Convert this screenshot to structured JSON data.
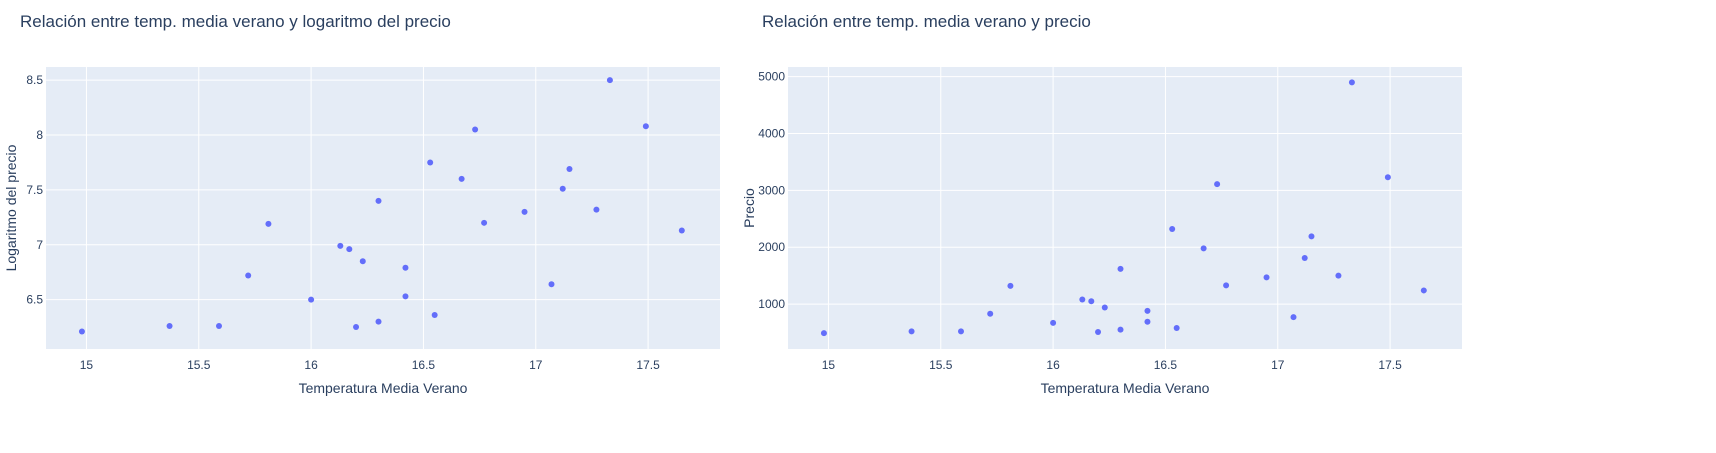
{
  "chart_data": [
    {
      "type": "scatter",
      "title": "Relación entre temp. media verano y logaritmo del precio",
      "xlabel": "Temperatura Media Verano",
      "ylabel": "Logaritmo del precio",
      "xlim": [
        14.82,
        17.82
      ],
      "ylim": [
        6.05,
        8.62
      ],
      "xticks": [
        15,
        15.5,
        16,
        16.5,
        17,
        17.5
      ],
      "xtick_labels": [
        "15",
        "15.5",
        "16",
        "16.5",
        "17",
        "17.5"
      ],
      "yticks": [
        6.5,
        7,
        7.5,
        8,
        8.5
      ],
      "ytick_labels": [
        "6.5",
        "7",
        "7.5",
        "8",
        "8.5"
      ],
      "grid": true,
      "color": "#636efa",
      "points": [
        {
          "x": 14.98,
          "y": 6.21
        },
        {
          "x": 15.37,
          "y": 6.26
        },
        {
          "x": 15.59,
          "y": 6.26
        },
        {
          "x": 15.72,
          "y": 6.72
        },
        {
          "x": 15.81,
          "y": 7.19
        },
        {
          "x": 16.0,
          "y": 6.5
        },
        {
          "x": 16.13,
          "y": 6.99
        },
        {
          "x": 16.17,
          "y": 6.96
        },
        {
          "x": 16.2,
          "y": 6.25
        },
        {
          "x": 16.23,
          "y": 6.85
        },
        {
          "x": 16.3,
          "y": 7.4
        },
        {
          "x": 16.3,
          "y": 6.3
        },
        {
          "x": 16.42,
          "y": 6.79
        },
        {
          "x": 16.42,
          "y": 6.53
        },
        {
          "x": 16.53,
          "y": 7.75
        },
        {
          "x": 16.55,
          "y": 6.36
        },
        {
          "x": 16.67,
          "y": 7.6
        },
        {
          "x": 16.73,
          "y": 8.05
        },
        {
          "x": 16.77,
          "y": 7.2
        },
        {
          "x": 16.95,
          "y": 7.3
        },
        {
          "x": 17.07,
          "y": 6.64
        },
        {
          "x": 17.12,
          "y": 7.51
        },
        {
          "x": 17.15,
          "y": 7.69
        },
        {
          "x": 17.27,
          "y": 7.32
        },
        {
          "x": 17.33,
          "y": 8.5
        },
        {
          "x": 17.49,
          "y": 8.08
        },
        {
          "x": 17.65,
          "y": 7.13
        }
      ]
    },
    {
      "type": "scatter",
      "title": "Relación entre temp. media verano y precio",
      "xlabel": "Temperatura Media Verano",
      "ylabel": "Precio",
      "xlim": [
        14.82,
        17.82
      ],
      "ylim": [
        210,
        5170
      ],
      "xticks": [
        15,
        15.5,
        16,
        16.5,
        17,
        17.5
      ],
      "xtick_labels": [
        "15",
        "15.5",
        "16",
        "16.5",
        "17",
        "17.5"
      ],
      "yticks": [
        1000,
        2000,
        3000,
        4000,
        5000
      ],
      "ytick_labels": [
        "1000",
        "2000",
        "3000",
        "4000",
        "5000"
      ],
      "grid": true,
      "color": "#636efa",
      "points": [
        {
          "x": 14.98,
          "y": 490
        },
        {
          "x": 15.37,
          "y": 520
        },
        {
          "x": 15.59,
          "y": 520
        },
        {
          "x": 15.72,
          "y": 830
        },
        {
          "x": 15.81,
          "y": 1320
        },
        {
          "x": 16.0,
          "y": 670
        },
        {
          "x": 16.13,
          "y": 1080
        },
        {
          "x": 16.17,
          "y": 1050
        },
        {
          "x": 16.2,
          "y": 510
        },
        {
          "x": 16.23,
          "y": 940
        },
        {
          "x": 16.3,
          "y": 1620
        },
        {
          "x": 16.3,
          "y": 550
        },
        {
          "x": 16.42,
          "y": 880
        },
        {
          "x": 16.42,
          "y": 690
        },
        {
          "x": 16.53,
          "y": 2320
        },
        {
          "x": 16.55,
          "y": 580
        },
        {
          "x": 16.67,
          "y": 1980
        },
        {
          "x": 16.73,
          "y": 3110
        },
        {
          "x": 16.77,
          "y": 1330
        },
        {
          "x": 16.95,
          "y": 1470
        },
        {
          "x": 17.07,
          "y": 770
        },
        {
          "x": 17.12,
          "y": 1810
        },
        {
          "x": 17.15,
          "y": 2190
        },
        {
          "x": 17.27,
          "y": 1500
        },
        {
          "x": 17.33,
          "y": 4900
        },
        {
          "x": 17.49,
          "y": 3230
        },
        {
          "x": 17.65,
          "y": 1240
        }
      ]
    }
  ]
}
